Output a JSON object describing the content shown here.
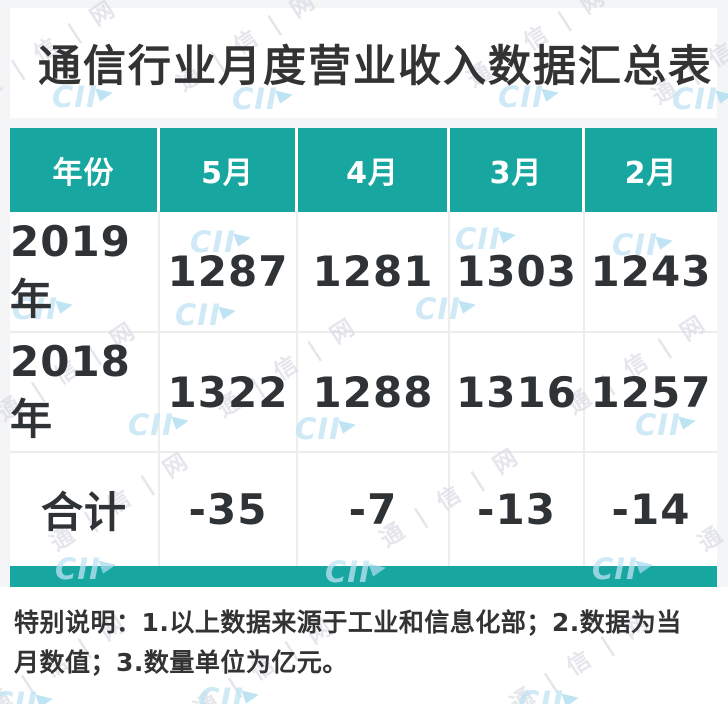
{
  "title": "通信行业月度营业收入数据汇总表",
  "table": {
    "columns": [
      "年份",
      "5月",
      "4月",
      "3月",
      "2月"
    ],
    "rows": [
      {
        "label": "2019年",
        "values": [
          "1287",
          "1281",
          "1303",
          "1243"
        ]
      },
      {
        "label": "2018年",
        "values": [
          "1322",
          "1288",
          "1316",
          "1257"
        ]
      },
      {
        "label": "合计",
        "values": [
          "-35",
          "-7",
          "-13",
          "-14"
        ]
      }
    ]
  },
  "footer": {
    "note": "特别说明：1.以上数据来源于工业和信息化部；2.数据为当月数值；3.数量单位为亿元。"
  },
  "watermark": {
    "text": "通 | 信 | 网",
    "logo_text": "CII"
  },
  "colors": {
    "teal": "#17a7a0",
    "text_dark": "#333333",
    "separator": "#ededee",
    "watermark_gray": "#d6d7e2",
    "watermark_blue": "#bfe4f3"
  },
  "chart_data": {
    "type": "table",
    "title": "通信行业月度营业收入数据汇总表",
    "columns": [
      "年份",
      "5月",
      "4月",
      "3月",
      "2月"
    ],
    "rows": [
      [
        "2019年",
        1287,
        1281,
        1303,
        1243
      ],
      [
        "2018年",
        1322,
        1288,
        1316,
        1257
      ],
      [
        "合计",
        -35,
        -7,
        -13,
        -14
      ]
    ],
    "unit": "亿元",
    "note": "特别说明：1.以上数据来源于工业和信息化部；2.数据为当月数值；3.数量单位为亿元。"
  }
}
